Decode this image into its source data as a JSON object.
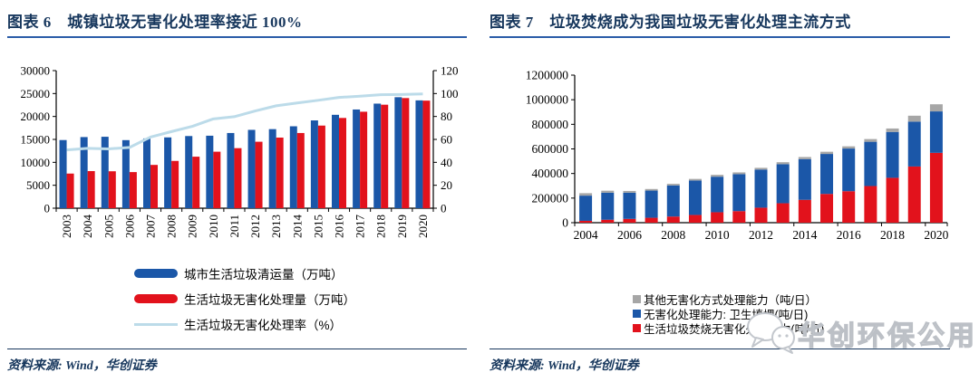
{
  "colors": {
    "title_navy": "#17375D",
    "title_underline_blue": "#2A5CA8",
    "bar_blue": "#1B57A8",
    "bar_red": "#E2121C",
    "line_lightblue": "#BCDBE9",
    "bar_gray": "#A6A6A6",
    "axis_black": "#000000",
    "watermark_gray": "#BCC0C6"
  },
  "panels": [
    {
      "title": "图表 6　城镇垃圾无害化处理率接近 100%",
      "source": "资料来源: Wind，华创证券"
    },
    {
      "title": "图表 7　垃圾焚烧成为我国垃圾无害化处理主流方式",
      "source": "资料来源: Wind，华创证券",
      "watermark": "华创环保公用"
    }
  ],
  "chart_data": [
    {
      "type": "grouped-bar-line",
      "title": "城镇垃圾无害化处理率接近 100%",
      "categories": [
        "2003",
        "2004",
        "2005",
        "2006",
        "2007",
        "2008",
        "2009",
        "2010",
        "2011",
        "2012",
        "2013",
        "2014",
        "2015",
        "2016",
        "2017",
        "2018",
        "2019",
        "2020"
      ],
      "series": [
        {
          "name": "城市生活垃圾清运量（万吨）",
          "kind": "bar",
          "color": "#1B57A8",
          "values": [
            14857,
            15509,
            15577,
            14841,
            15215,
            15438,
            15734,
            15805,
            16395,
            17081,
            17239,
            17860,
            19142,
            20362,
            21521,
            22802,
            24206,
            23512
          ]
        },
        {
          "name": "生活垃圾无害化处理量（万吨）",
          "kind": "bar",
          "color": "#E2121C",
          "values": [
            7550,
            8089,
            8051,
            7873,
            9438,
            10307,
            11232,
            12318,
            13090,
            14490,
            15394,
            16394,
            18013,
            19674,
            21034,
            22565,
            24013,
            23452
          ]
        },
        {
          "name": "生活垃圾无害化处理率（%）",
          "kind": "line",
          "axis": "right",
          "color": "#BCDBE9",
          "values": [
            50.8,
            52.2,
            51.7,
            53.0,
            62.0,
            66.8,
            71.4,
            77.9,
            79.8,
            84.8,
            89.3,
            91.8,
            94.1,
            96.6,
            97.7,
            99.0,
            99.2,
            99.7
          ]
        }
      ],
      "left_axis": {
        "min": 0,
        "max": 30000,
        "step": 5000
      },
      "right_axis": {
        "min": 0,
        "max": 120,
        "step": 20
      },
      "grid": false,
      "x_label_rotation": -90,
      "x_label_interval": 1,
      "legend_position": "bottom",
      "legend_reverse": false
    },
    {
      "type": "stacked-bar",
      "title": "垃圾焚烧成为我国垃圾无害化处理主流方式",
      "categories": [
        "2004",
        "2005",
        "2006",
        "2007",
        "2008",
        "2009",
        "2010",
        "2011",
        "2012",
        "2013",
        "2014",
        "2015",
        "2016",
        "2017",
        "2018",
        "2019",
        "2020"
      ],
      "series": [
        {
          "name": "生活垃圾焚烧无害化处理能力(吨/日)",
          "kind": "bar",
          "color": "#E2121C",
          "values": [
            15000,
            24000,
            31000,
            40000,
            50000,
            63000,
            85000,
            94000,
            122000,
            158000,
            186000,
            234000,
            256000,
            298000,
            365000,
            457000,
            568000
          ]
        },
        {
          "name": "无害化处理能力: 卫生填埋(吨/日)",
          "kind": "bar",
          "color": "#1B57A8",
          "values": [
            205000,
            220000,
            213000,
            221000,
            253000,
            280000,
            289000,
            301000,
            310000,
            318000,
            331000,
            325000,
            347000,
            360000,
            373000,
            365000,
            337000
          ]
        },
        {
          "name": "其他无害化方式处理能力（吨/日）",
          "kind": "bar",
          "color": "#A6A6A6",
          "values": [
            20000,
            16000,
            14000,
            13000,
            13000,
            13000,
            15000,
            14000,
            14000,
            16000,
            17000,
            18000,
            18000,
            22000,
            28000,
            48000,
            58000
          ]
        }
      ],
      "left_axis": {
        "min": 0,
        "max": 1200000,
        "step": 200000
      },
      "grid": false,
      "x_label_rotation": 0,
      "x_label_interval": 2,
      "legend_position": "bottom-right",
      "legend_reverse": true
    }
  ]
}
